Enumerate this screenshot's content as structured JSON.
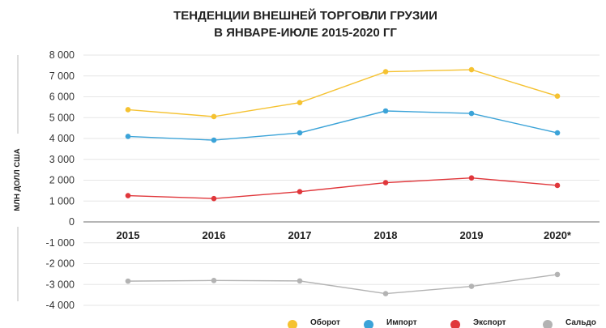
{
  "chart_data": {
    "type": "line",
    "title_line1": "ТЕНДЕНЦИИ ВНЕШНЕЙ ТОРГОВЛИ ГРУЗИИ",
    "title_line2": "В ЯНВАРЕ-ИЮЛЕ 2015-2020 ГГ",
    "ylabel": "МЛН ДОЛЛ США",
    "xlabel": "",
    "categories": [
      "2015",
      "2016",
      "2017",
      "2018",
      "2019",
      "2020*"
    ],
    "ylim": [
      -4000,
      8000
    ],
    "yticks": [
      8000,
      7000,
      6000,
      5000,
      4000,
      3000,
      2000,
      1000,
      0,
      -1000,
      -2000,
      -3000,
      -4000
    ],
    "ytick_labels": [
      "8 000",
      "7 000",
      "6 000",
      "5 000",
      "4 000",
      "3 000",
      "2 000",
      "1 000",
      "0",
      "-1 000",
      "-2 000",
      "-3 000",
      "-4 000"
    ],
    "grid": true,
    "legend_position": "bottom-right",
    "series": [
      {
        "name": "Оборот",
        "color": "#f5c231",
        "values": [
          5380,
          5050,
          5720,
          7200,
          7300,
          6030
        ]
      },
      {
        "name": "Импорт",
        "color": "#3ba3d8",
        "values": [
          4100,
          3920,
          4270,
          5320,
          5200,
          4270
        ]
      },
      {
        "name": "Экспорт",
        "color": "#e0373b",
        "values": [
          1260,
          1120,
          1450,
          1880,
          2110,
          1750
        ]
      },
      {
        "name": "Сальдо",
        "color": "#b3b3b3",
        "values": [
          -2840,
          -2810,
          -2830,
          -3440,
          -3090,
          -2520
        ]
      }
    ]
  }
}
